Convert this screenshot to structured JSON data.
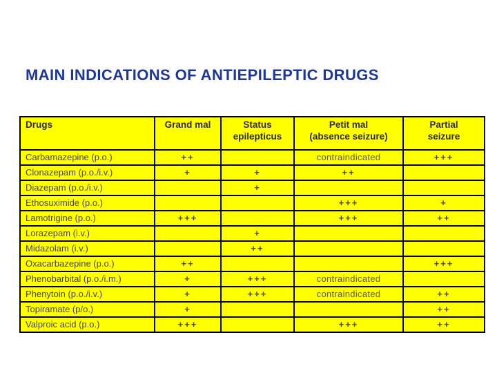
{
  "title": "MAIN INDICATIONS OF ANTIEPILEPTIC DRUGS",
  "colors": {
    "title_blue": "#1b369f",
    "table_yellow": "#ffff00",
    "border_black": "#000000",
    "cell_text": "#44423a"
  },
  "table": {
    "headers": [
      {
        "lines": [
          "Drugs"
        ]
      },
      {
        "lines": [
          "Grand mal"
        ]
      },
      {
        "lines": [
          "Status",
          "epilepticus"
        ]
      },
      {
        "lines": [
          "Petit mal",
          "(absence seizure)"
        ]
      },
      {
        "lines": [
          "Partial",
          "seizure"
        ]
      }
    ],
    "rows": [
      {
        "drug": "Carbamazepine (p.o.)",
        "grand_mal": "++",
        "status_epilepticus": "",
        "petit_mal": "contraindicated",
        "partial_seizure": "+++"
      },
      {
        "drug": "Clonazepam (p.o./i.v.)",
        "grand_mal": "+",
        "status_epilepticus": "+",
        "petit_mal": "++",
        "partial_seizure": ""
      },
      {
        "drug": "Diazepam (p.o./i.v.)",
        "grand_mal": "",
        "status_epilepticus": "+",
        "petit_mal": "",
        "partial_seizure": ""
      },
      {
        "drug": "Ethosuximide (p.o.)",
        "grand_mal": "",
        "status_epilepticus": "",
        "petit_mal": "+++",
        "partial_seizure": "+"
      },
      {
        "drug": "Lamotrigine (p.o.)",
        "grand_mal": "+++",
        "status_epilepticus": "",
        "petit_mal": "+++",
        "partial_seizure": "++"
      },
      {
        "drug": "Lorazepam (i.v.)",
        "grand_mal": "",
        "status_epilepticus": "+",
        "petit_mal": "",
        "partial_seizure": ""
      },
      {
        "drug": "Midazolam (i.v.)",
        "grand_mal": "",
        "status_epilepticus": "++",
        "petit_mal": "",
        "partial_seizure": ""
      },
      {
        "drug": "Oxacarbazepine (p.o.)",
        "grand_mal": "++",
        "status_epilepticus": "",
        "petit_mal": "",
        "partial_seizure": "+++"
      },
      {
        "drug": "Phenobarbital (p.o./i.m.)",
        "grand_mal": "+",
        "status_epilepticus": "+++",
        "petit_mal": "contraindicated",
        "partial_seizure": ""
      },
      {
        "drug": "Phenytoin (p.o./i.v.)",
        "grand_mal": "+",
        "status_epilepticus": "+++",
        "petit_mal": "contraindicated",
        "partial_seizure": "++"
      },
      {
        "drug": "Topiramate (p/o.)",
        "grand_mal": "+",
        "status_epilepticus": "",
        "petit_mal": "",
        "partial_seizure": "++"
      },
      {
        "drug": "Valproic acid (p.o.)",
        "grand_mal": "+++",
        "status_epilepticus": "",
        "petit_mal": "+++",
        "partial_seizure": "++"
      }
    ]
  }
}
